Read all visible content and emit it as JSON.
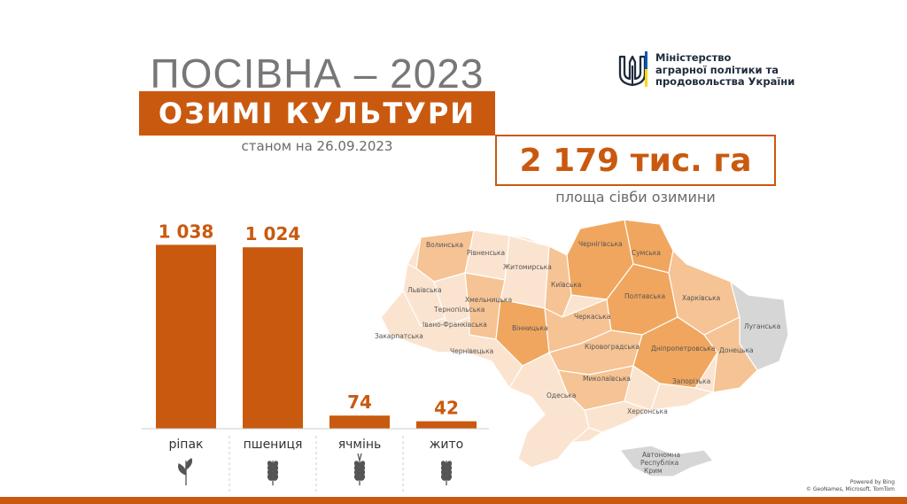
{
  "header": {
    "title": "ПОСІВНА – 2023",
    "subtitle": "ОЗИМІ КУЛЬТУРИ",
    "date_line": "станом на 26.09.2023"
  },
  "ministry": {
    "lines": [
      "Міністерство",
      "аграрної політики та",
      "продовольства України"
    ],
    "logo_icon": "trident-icon",
    "accent_colors": [
      "#0057b7",
      "#ffd700"
    ]
  },
  "summary": {
    "total": "2 179 тис. га",
    "caption": "площа сівби озимини"
  },
  "chart_data": {
    "type": "bar",
    "categories": [
      "ріпак",
      "пшениця",
      "ячмінь",
      "жито"
    ],
    "value_labels": [
      "1 038",
      "1 024",
      "74",
      "42"
    ],
    "values": [
      1038,
      1024,
      74,
      42
    ],
    "ylim": [
      0,
      1100
    ],
    "grid": false,
    "bar_color": "#c9590f",
    "icons": [
      "sprout-icon",
      "wheat-icon",
      "barley-icon",
      "rye-icon"
    ]
  },
  "map": {
    "regions": [
      "Волинська",
      "Рівненська",
      "Житомирська",
      "Чернігівська",
      "Сумська",
      "Львівська",
      "Хмельницька",
      "Київська",
      "Полтавська",
      "Харківська",
      "Тернопільська",
      "Івано-Франківська",
      "Закарпатська",
      "Чернівецька",
      "Вінницька",
      "Черкаська",
      "Луганська",
      "Кіровоградська",
      "Дніпропетровська",
      "Донецька",
      "Миколаївська",
      "Запорізька",
      "Одеська",
      "Херсонська",
      "Автономна",
      "Республіка",
      "Крим"
    ],
    "credit": [
      "Powered by Bing",
      "© GeoNames, Microsoft, TomTom"
    ]
  },
  "colors": {
    "accent": "#c9590f",
    "map_light": "#fbe4cf",
    "map_mid": "#f6c394",
    "map_dark": "#f0a65e",
    "map_gray": "#d6d6d6"
  }
}
